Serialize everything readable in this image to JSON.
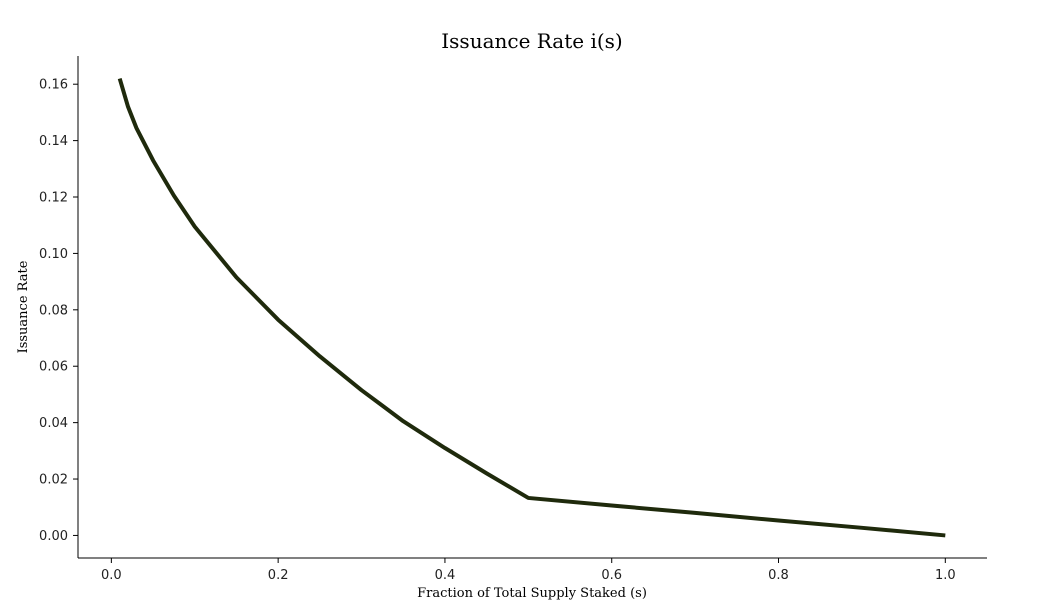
{
  "chart_data": {
    "type": "line",
    "title": "Issuance Rate i(s)",
    "xlabel": "Fraction of Total Supply Staked (s)",
    "ylabel": "Issuance Rate",
    "xlim": [
      -0.04,
      1.05
    ],
    "ylim": [
      -0.008,
      0.17
    ],
    "xticks": [
      0.0,
      0.2,
      0.4,
      0.6,
      0.8,
      1.0
    ],
    "xtick_labels": [
      "0.0",
      "0.2",
      "0.4",
      "0.6",
      "0.8",
      "1.0"
    ],
    "yticks": [
      0.0,
      0.02,
      0.04,
      0.06,
      0.08,
      0.1,
      0.12,
      0.14,
      0.16
    ],
    "ytick_labels": [
      "0.00",
      "0.02",
      "0.04",
      "0.06",
      "0.08",
      "0.10",
      "0.12",
      "0.14",
      "0.16"
    ],
    "grid": false,
    "line_color": "#1f2a0c",
    "series": [
      {
        "name": "",
        "x": [
          0.01,
          0.02,
          0.03,
          0.05,
          0.075,
          0.1,
          0.15,
          0.2,
          0.25,
          0.3,
          0.35,
          0.4,
          0.45,
          0.5,
          0.6,
          0.7,
          0.8,
          0.9,
          1.0
        ],
        "y": [
          0.162,
          0.152,
          0.1445,
          0.133,
          0.1205,
          0.1095,
          0.0915,
          0.0765,
          0.0635,
          0.0515,
          0.0405,
          0.031,
          0.022,
          0.0133,
          0.0106,
          0.008,
          0.0053,
          0.0027,
          0.0
        ]
      }
    ]
  }
}
